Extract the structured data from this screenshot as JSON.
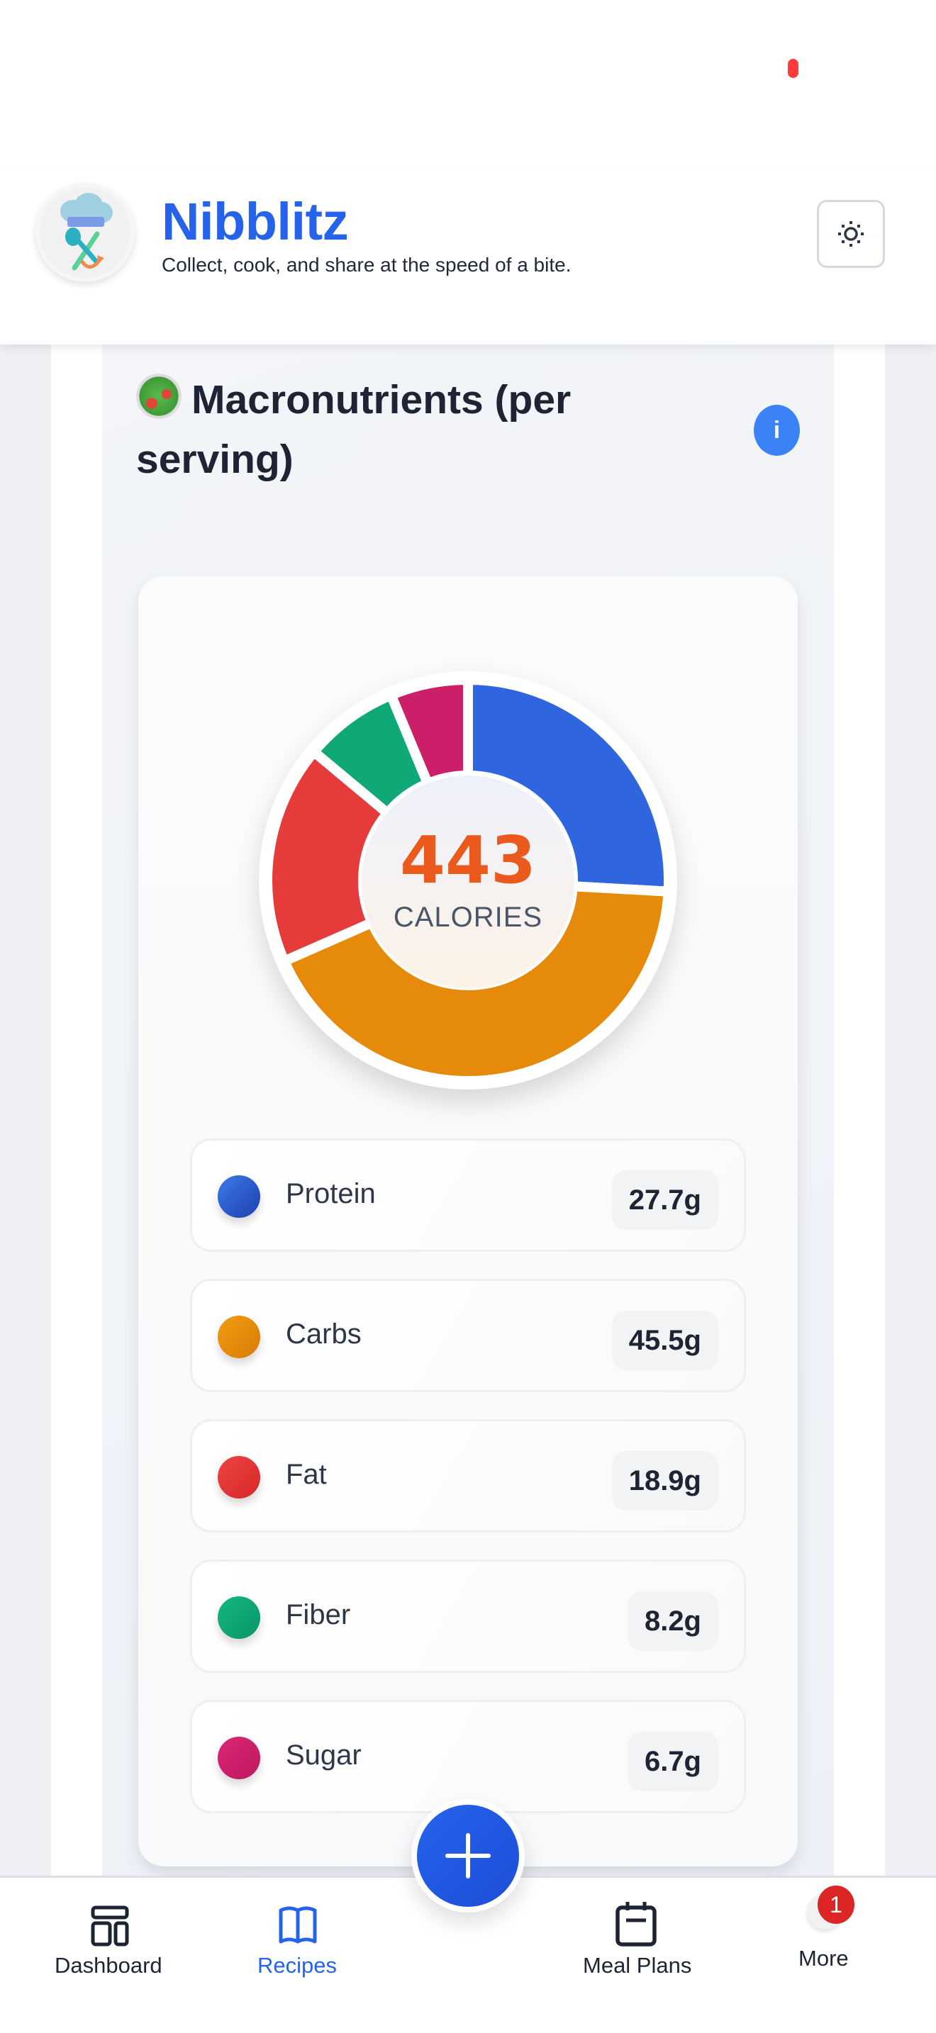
{
  "header": {
    "app_title": "Nibblitz",
    "tagline": "Collect, cook, and share at the speed of a bite.",
    "logo_icon": "chef-hat-utensils-logo",
    "theme_toggle_icon": "sun-icon"
  },
  "section": {
    "emoji_icon": "salad-icon",
    "title": "Macronutrients (per serving)",
    "info_label": "i"
  },
  "calories": {
    "value": "443",
    "label": "CALORIES"
  },
  "legend": [
    {
      "name": "Protein",
      "value": "27.7g",
      "color": "#2f66e0"
    },
    {
      "name": "Carbs",
      "value": "45.5g",
      "color": "#e58a0a"
    },
    {
      "name": "Fat",
      "value": "18.9g",
      "color": "#e53b3b"
    },
    {
      "name": "Fiber",
      "value": "8.2g",
      "color": "#10a877"
    },
    {
      "name": "Sugar",
      "value": "6.7g",
      "color": "#cc1f6a"
    }
  ],
  "chart_data": {
    "type": "pie",
    "title": "Macronutrients (per serving)",
    "center_label": "443 CALORIES",
    "categories": [
      "Protein",
      "Carbs",
      "Fat",
      "Fiber",
      "Sugar"
    ],
    "values": [
      27.7,
      45.5,
      18.9,
      8.2,
      6.7
    ],
    "unit": "g",
    "colors": [
      "#2f66e0",
      "#e58a0a",
      "#e53b3b",
      "#10a877",
      "#cc1f6a"
    ],
    "donut": true,
    "start_angle": "12 o'clock, clockwise",
    "legend_position": "below"
  },
  "nav": {
    "items": [
      {
        "label": "Dashboard",
        "icon": "dashboard-icon",
        "active": false
      },
      {
        "label": "Recipes",
        "icon": "book-icon",
        "active": true
      },
      {
        "label": "Meal Plans",
        "icon": "calendar-icon",
        "active": false
      },
      {
        "label": "More",
        "icon": "avatar-icon",
        "active": false,
        "badge": "1"
      }
    ],
    "fab_icon": "plus-icon"
  }
}
